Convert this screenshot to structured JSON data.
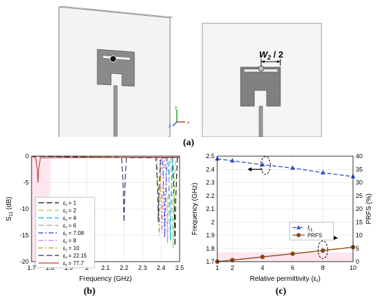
{
  "figure": {
    "label_a": "(a)",
    "label_b": "(b)",
    "label_c": "(c)"
  },
  "diagram_a": {
    "dimension_label": "W",
    "dimension_sub": "2",
    "dimension_suffix": " / 2",
    "axis_z": "z",
    "axis_x": "x",
    "colors": {
      "plate": "#f2f2f2",
      "antenna": "#7f7f7f",
      "feed": "#9a9a9a"
    }
  },
  "chart_data": [
    {
      "id": "b",
      "type": "line",
      "xlabel": "Frequency (GHz)",
      "ylabel_main": "S",
      "ylabel_sub": "11",
      "ylabel_unit": " (dB)",
      "xlim": [
        1.7,
        2.5
      ],
      "ylim": [
        -20,
        0
      ],
      "xticks": [
        1.7,
        1.8,
        1.9,
        2.0,
        2.1,
        2.2,
        2.3,
        2.4,
        2.5
      ],
      "xtick_labels": [
        "1.7",
        "1.8",
        "1.9",
        "2",
        "2.1",
        "2.2",
        "2.3",
        "2.4",
        "2.5"
      ],
      "yticks": [
        0,
        -5,
        -10,
        -15,
        -20
      ],
      "ytick_labels": [
        "0",
        "-5",
        "-10",
        "-15",
        "-20"
      ],
      "legend_prefix": "ε",
      "legend_sub": "r",
      "series": [
        {
          "name": "= 1",
          "color": "#000000",
          "dash": "8,4",
          "resonances": [
            [
              2.475,
              -17.0
            ]
          ]
        },
        {
          "name": "= 2",
          "color": "#92d050",
          "dash": "8,4",
          "resonances": [
            [
              2.465,
              -17.5
            ]
          ]
        },
        {
          "name": "= 4",
          "color": "#00b0f0",
          "dash": "8,4",
          "resonances": [
            [
              2.45,
              -16.0
            ]
          ]
        },
        {
          "name": "= 6",
          "color": "#a0a0a0",
          "dash": "8,4",
          "resonances": [
            [
              2.435,
              -16.5
            ]
          ]
        },
        {
          "name": "= 7.08",
          "color": "#3333cc",
          "dash": "7,3,2,3",
          "resonances": [
            [
              2.42,
              -15.5
            ]
          ]
        },
        {
          "name": "= 8",
          "color": "#d070d0",
          "dash": "7,3,2,3",
          "resonances": [
            [
              2.405,
              -14.5
            ]
          ]
        },
        {
          "name": "= 10",
          "color": "#b8a000",
          "dash": "7,3,2,3",
          "resonances": [
            [
              2.39,
              -15.0
            ]
          ]
        },
        {
          "name": "= 22.15",
          "color": "#1f2a60",
          "dash": "8,4",
          "resonances": [
            [
              2.2,
              -12.5
            ],
            [
              2.385,
              -12.5
            ]
          ]
        },
        {
          "name": "= 77.7",
          "color": "#c0392b",
          "dash": "",
          "resonances": [
            [
              1.735,
              -5.0
            ]
          ]
        }
      ]
    },
    {
      "id": "c",
      "type": "line",
      "xlabel": "Relative permittivity (ε",
      "xlabel_sub": "r",
      "xlabel_end": ")",
      "ylabel_left": "Frequency (GHz)",
      "ylabel_right": "PRFS (%)",
      "xlim": [
        1,
        10
      ],
      "ylim_left": [
        1.7,
        2.5
      ],
      "ylim_right": [
        0,
        40
      ],
      "xticks": [
        1,
        2,
        4,
        6,
        8,
        10
      ],
      "xtick_labels": [
        "1",
        "2",
        "4",
        "6",
        "8",
        "10"
      ],
      "yticks_left": [
        1.7,
        1.8,
        1.9,
        2.0,
        2.1,
        2.2,
        2.3,
        2.4,
        2.5
      ],
      "ytick_left_labels": [
        "1.7",
        "1.8",
        "1.9",
        "2",
        "2.1",
        "2.2",
        "2.3",
        "2.4",
        "2.5"
      ],
      "yticks_right": [
        0,
        5,
        10,
        15,
        20,
        25,
        30,
        35,
        40
      ],
      "ytick_right_labels": [
        "0",
        "5",
        "10",
        "15",
        "20",
        "25",
        "30",
        "35",
        "40"
      ],
      "series": [
        {
          "name": "f",
          "name_sub": "r1",
          "axis": "left",
          "color": "#2e4fd0",
          "marker": "triangle",
          "dash": "6,3",
          "x": [
            1,
            2,
            4,
            6,
            8,
            10
          ],
          "y": [
            2.48,
            2.465,
            2.435,
            2.41,
            2.375,
            2.345
          ]
        },
        {
          "name": "PRFS",
          "axis": "right",
          "color": "#8b4513",
          "marker": "circle",
          "dash": "",
          "x": [
            1,
            2,
            4,
            6,
            8,
            10
          ],
          "y": [
            0,
            0.6,
            1.8,
            3.0,
            4.2,
            5.5
          ]
        }
      ]
    }
  ]
}
